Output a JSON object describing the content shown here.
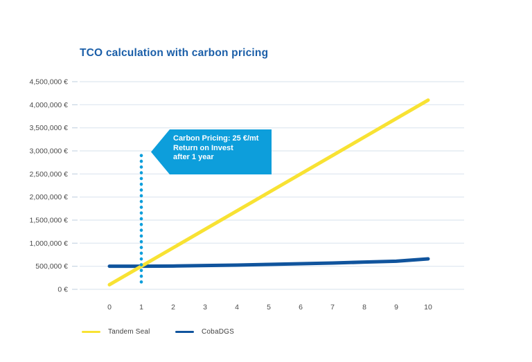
{
  "page": {
    "background": "#ffffff"
  },
  "colors": {
    "title": "#1a5ea8",
    "gridline": "#dde6ef",
    "tick_mark": "#c7d4e2",
    "axis_label": "#4a4a4a",
    "legend_label": "#3f3f3f",
    "annotation_fill": "#0d9edb",
    "annotation_text": "#ffffff"
  },
  "chart_data": {
    "type": "line",
    "title": "TCO calculation with carbon pricing",
    "xlabel": "",
    "ylabel": "",
    "x": [
      0,
      1,
      2,
      3,
      4,
      5,
      6,
      7,
      8,
      9,
      10
    ],
    "x_tick_labels": [
      "0",
      "1",
      "2",
      "3",
      "4",
      "5",
      "6",
      "7",
      "8",
      "9",
      "10"
    ],
    "y_ticks": [
      0,
      500000,
      1000000,
      1500000,
      2000000,
      2500000,
      3000000,
      3500000,
      4000000,
      4500000
    ],
    "y_tick_labels": [
      "0 €",
      "500,000 €",
      "1,000,000 €",
      "1,500,000 €",
      "2,000,000 €",
      "2,500,000 €",
      "3,000,000 €",
      "3,500,000 €",
      "4,000,000 €",
      "4,500,000 €"
    ],
    "ylim": [
      0,
      4500000
    ],
    "grid": "horizontal",
    "legend_position": "bottom-left",
    "series": [
      {
        "name": "Tandem Seal",
        "color": "#f8e233",
        "values": [
          100000,
          500000,
          900000,
          1300000,
          1700000,
          2100000,
          2500000,
          2900000,
          3300000,
          3700000,
          4100000
        ]
      },
      {
        "name": "CobaDGS",
        "color": "#10549d",
        "values": [
          500000,
          500000,
          505000,
          515000,
          525000,
          540000,
          555000,
          570000,
          590000,
          610000,
          660000
        ]
      }
    ],
    "annotation": {
      "lines": [
        "Carbon Pricing: 25 €/mt",
        "Return on Invest",
        "after 1 year"
      ],
      "marker_x": 1,
      "marker_y_range": [
        145000,
        2900000
      ],
      "color": "#0d9edb"
    }
  }
}
